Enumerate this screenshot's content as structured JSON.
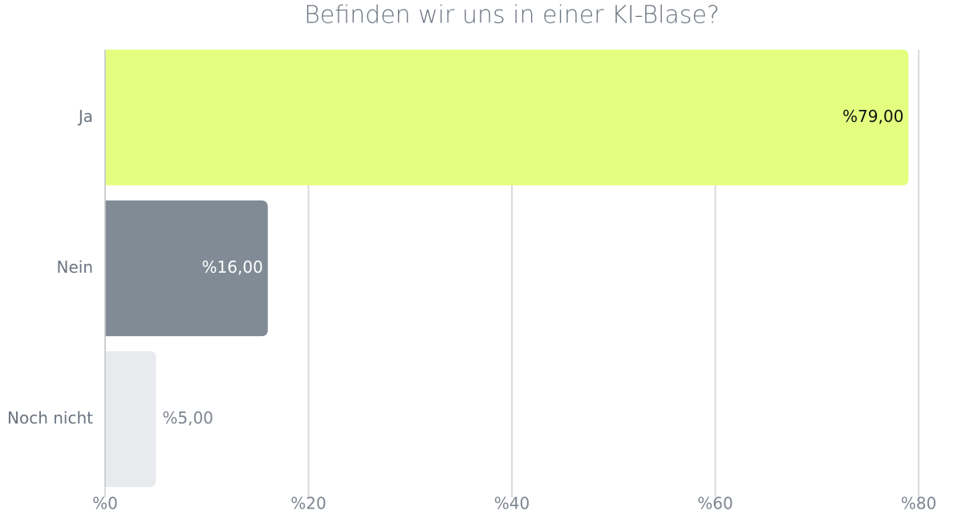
{
  "chart_data": {
    "type": "hbar",
    "title": "Befinden wir uns in einer KI-Blase?",
    "categories": [
      "Ja",
      "Nein",
      "Noch nicht"
    ],
    "values": [
      79,
      16,
      5
    ],
    "value_labels": [
      "%79,00",
      "%16,00",
      "%5,00"
    ],
    "colors": [
      "#e4ff80",
      "#808b96",
      "#e9eaee"
    ],
    "xlim": [
      0,
      80
    ],
    "xticks": [
      {
        "value": 0,
        "label": "%0"
      },
      {
        "value": 20,
        "label": "%20"
      },
      {
        "value": 40,
        "label": "%40"
      },
      {
        "value": 60,
        "label": "%60"
      },
      {
        "value": 80,
        "label": "%80"
      }
    ],
    "grid": true
  }
}
